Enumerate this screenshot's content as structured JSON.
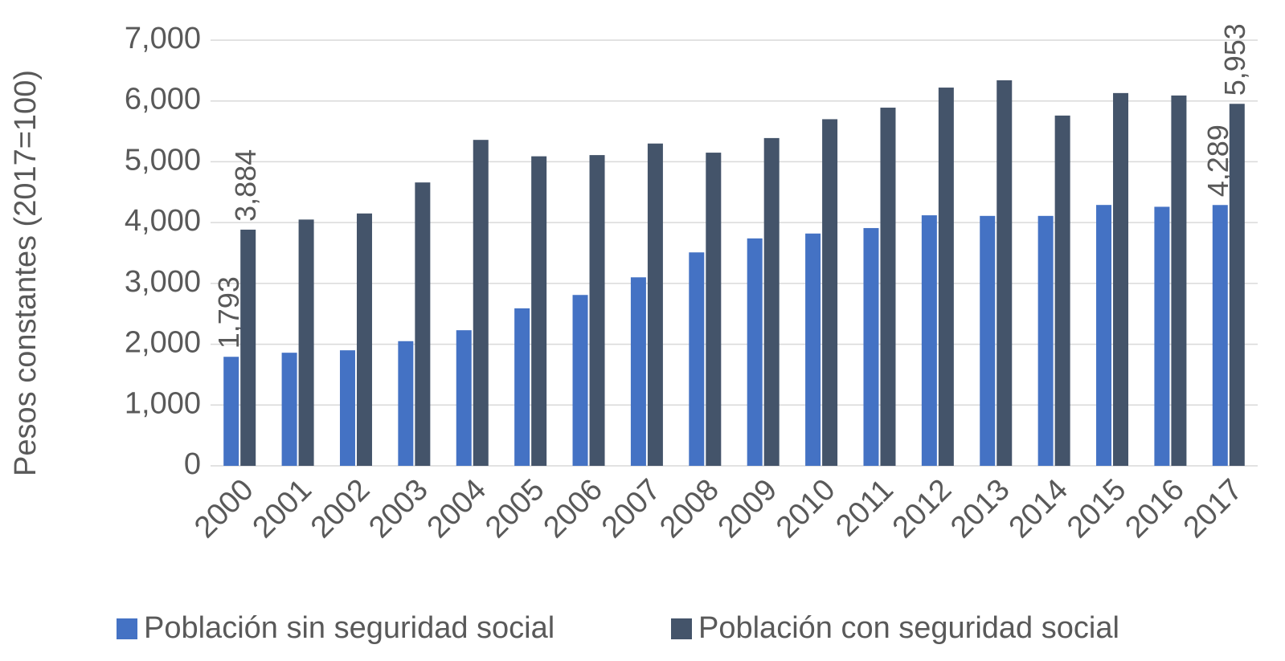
{
  "chart_data": {
    "type": "bar",
    "y_label": "Pesos constantes (2017=100)",
    "categories": [
      "2000",
      "2001",
      "2002",
      "2003",
      "2004",
      "2005",
      "2006",
      "2007",
      "2008",
      "2009",
      "2010",
      "2011",
      "2012",
      "2013",
      "2014",
      "2015",
      "2016",
      "2017"
    ],
    "series": [
      {
        "name": "Población sin seguridad social",
        "color": "#4472c4",
        "values": [
          1793,
          1860,
          1900,
          2050,
          2230,
          2590,
          2810,
          3100,
          3510,
          3740,
          3820,
          3910,
          4120,
          4110,
          4110,
          4290,
          4260,
          4289
        ],
        "value_labels": [
          "1,793",
          null,
          null,
          null,
          null,
          null,
          null,
          null,
          null,
          null,
          null,
          null,
          null,
          null,
          null,
          null,
          null,
          "4,289"
        ]
      },
      {
        "name": "Población con seguridad social",
        "color": "#44546a",
        "values": [
          3884,
          4050,
          4150,
          4660,
          5360,
          5090,
          5110,
          5300,
          5150,
          5390,
          5700,
          5890,
          6220,
          6340,
          5760,
          6130,
          6090,
          5953
        ],
        "value_labels": [
          "3,884",
          null,
          null,
          null,
          null,
          null,
          null,
          null,
          null,
          null,
          null,
          null,
          null,
          null,
          null,
          null,
          null,
          "5,953"
        ]
      }
    ],
    "ylim": [
      0,
      7000
    ],
    "yticks": [
      0,
      {
        "value": 1000,
        "label": "1,000"
      },
      {
        "value": 2000,
        "label": "2,000"
      },
      {
        "value": 3000,
        "label": "3,000"
      },
      {
        "value": 4000,
        "label": "4,000"
      },
      {
        "value": 5000,
        "label": "5,000"
      },
      {
        "value": 6000,
        "label": "6,000"
      },
      {
        "value": 7000,
        "label": "7,000"
      }
    ],
    "grid": true,
    "legend": "bottom"
  }
}
